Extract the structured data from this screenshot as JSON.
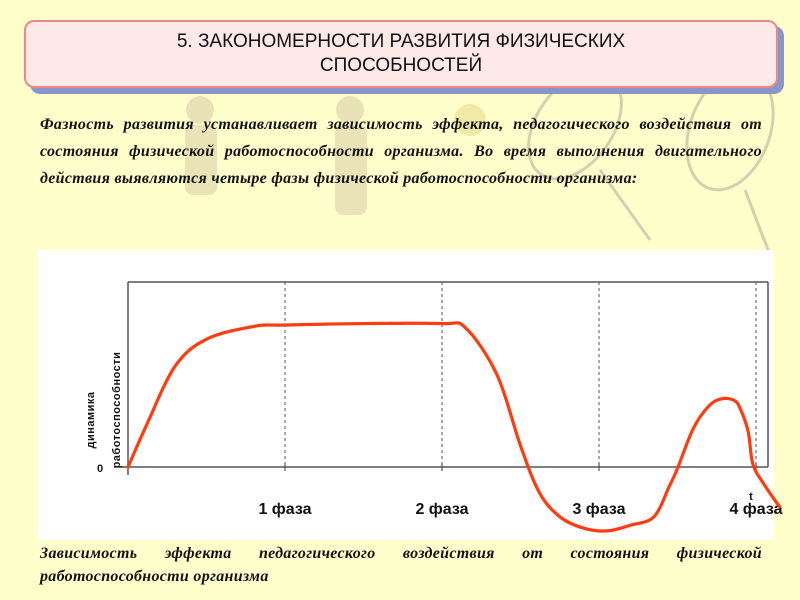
{
  "title": "5. ЗАКОНОМЕРНОСТИ РАЗВИТИЯ ФИЗИЧЕСКИХ СПОСОБНОСТЕЙ",
  "intro_text": "Фазность развития устанавливает зависимость эффекта, педагогического воздействия от состояния физической работоспособности организма. Во время выполнения двигательного действия выявляются четыре фазы физической работоспособности организма:",
  "caption": "Зависимость эффекта педагогического воздействия от состояния физической работоспособности организма",
  "colors": {
    "curve": "#ff3b10",
    "title_bg": "#fde9e7",
    "title_border": "#e88a8a",
    "title_shadow": "#8a96c8",
    "page_bg": "#ffffcc"
  },
  "chart_data": {
    "type": "line",
    "title": "",
    "ylabel_line1": "динамика",
    "ylabel_line2": "работоспособности",
    "xlabel": "t",
    "y_origin_label": "0",
    "phases": [
      "1 фаза",
      "2 фаза",
      "3 фаза",
      "4 фаза"
    ],
    "phase_boundaries": [
      1,
      2,
      3,
      4
    ],
    "grid": "vertical dashed at phase boundaries",
    "xlim": [
      0,
      4.2
    ],
    "ylim": [
      -0.5,
      1.15
    ],
    "series": [
      {
        "points": [
          [
            0.0,
            0.0
          ],
          [
            0.12,
            0.3
          ],
          [
            0.3,
            0.71
          ],
          [
            0.5,
            0.9
          ],
          [
            0.8,
            0.99
          ],
          [
            1.0,
            1.0
          ],
          [
            1.5,
            1.01
          ],
          [
            2.0,
            1.01
          ],
          [
            2.15,
            0.98
          ],
          [
            2.35,
            0.65
          ],
          [
            2.5,
            0.15
          ],
          [
            2.62,
            -0.18
          ],
          [
            2.75,
            -0.35
          ],
          [
            2.9,
            -0.43
          ],
          [
            3.05,
            -0.45
          ],
          [
            3.2,
            -0.41
          ],
          [
            3.35,
            -0.35
          ],
          [
            3.45,
            -0.13
          ],
          [
            3.5,
            -0.01
          ],
          [
            3.6,
            0.27
          ],
          [
            3.7,
            0.43
          ],
          [
            3.78,
            0.48
          ],
          [
            3.86,
            0.47
          ],
          [
            3.9,
            0.41
          ],
          [
            3.95,
            0.25
          ],
          [
            3.98,
            0.02
          ],
          [
            4.05,
            -0.12
          ],
          [
            4.15,
            -0.28
          ]
        ]
      }
    ]
  }
}
